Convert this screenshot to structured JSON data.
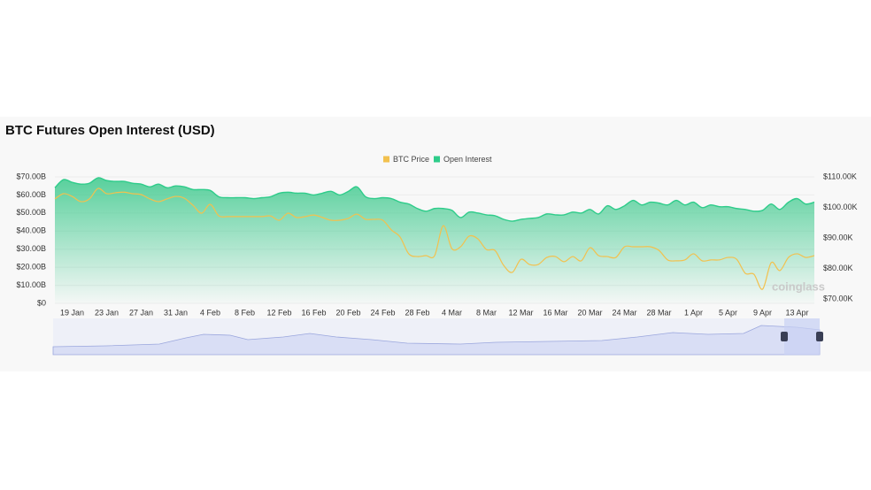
{
  "chart_data": {
    "type": "line",
    "title": "BTC Futures Open Interest (USD)",
    "watermark": "coinglass",
    "legend": "top",
    "categories": [
      null,
      null,
      "19 Jan",
      null,
      null,
      null,
      "23 Jan",
      null,
      null,
      null,
      "27 Jan",
      null,
      null,
      null,
      "31 Jan",
      null,
      null,
      null,
      "4 Feb",
      null,
      null,
      null,
      "8 Feb",
      null,
      null,
      null,
      "12 Feb",
      null,
      null,
      null,
      "16 Feb",
      null,
      null,
      null,
      "20 Feb",
      null,
      null,
      null,
      "24 Feb",
      null,
      null,
      null,
      "28 Feb",
      null,
      null,
      null,
      "4 Mar",
      null,
      null,
      null,
      "8 Mar",
      null,
      null,
      null,
      "12 Mar",
      null,
      null,
      null,
      "16 Mar",
      null,
      null,
      null,
      "20 Mar",
      null,
      null,
      null,
      "24 Mar",
      null,
      null,
      null,
      "28 Mar",
      null,
      null,
      null,
      "1 Apr",
      null,
      null,
      null,
      "5 Apr",
      null,
      null,
      null,
      "9 Apr",
      null,
      null,
      null,
      "13 Apr",
      null,
      null
    ],
    "series": [
      {
        "name": "BTC Price",
        "color": "#f2c14e",
        "axis": "y2",
        "values": [
          102.8,
          104.5,
          103.6,
          101.9,
          102.8,
          106.2,
          104.5,
          104.8,
          105,
          104.5,
          104.2,
          102.8,
          101.9,
          102.8,
          103.6,
          103,
          100.7,
          98.1,
          101,
          97.2,
          97,
          97,
          97,
          97,
          97,
          97.2,
          95.8,
          98.1,
          96.7,
          97,
          97.5,
          96.7,
          95.8,
          95.8,
          96.4,
          97.8,
          96.1,
          96.1,
          95.8,
          92.6,
          90.3,
          84.8,
          83.9,
          84.2,
          84.2,
          94,
          86.5,
          87.1,
          90.6,
          89.7,
          86.2,
          85.9,
          81,
          78.7,
          83,
          81.3,
          81.3,
          83.6,
          83.9,
          82.2,
          83.9,
          82.5,
          86.8,
          84.2,
          83.9,
          83.6,
          87.1,
          87.1,
          87.1,
          87.1,
          85.9,
          82.8,
          82.5,
          82.8,
          84.8,
          82.5,
          82.8,
          82.8,
          83.6,
          83,
          78.4,
          78.1,
          73.2,
          81.9,
          79.3,
          83.6,
          84.8,
          83.6,
          84.2
        ]
      },
      {
        "name": "Open Interest",
        "color": "#2ecc8a",
        "axis": "y",
        "values": [
          64,
          68.5,
          67,
          66,
          66.5,
          69.5,
          68,
          67.5,
          67.5,
          66.5,
          66,
          64.5,
          66,
          64,
          65,
          64.5,
          63,
          63,
          62.5,
          59,
          58.5,
          58.5,
          58.5,
          58,
          58.5,
          59,
          61,
          61.5,
          61,
          61,
          60,
          61,
          62,
          60,
          62,
          64.5,
          59,
          58,
          58.5,
          58,
          56,
          55,
          52.5,
          51,
          52.5,
          52.5,
          51.5,
          47.5,
          50.5,
          50,
          49,
          48.5,
          46.5,
          45.5,
          46.5,
          47,
          47.5,
          49.5,
          49,
          49,
          50.5,
          50,
          52,
          49.5,
          54,
          52,
          54,
          57,
          54.5,
          56,
          55.5,
          54.5,
          57,
          54.5,
          56,
          53,
          54.5,
          53.5,
          53.5,
          52.5,
          52,
          51,
          51.5,
          55,
          52,
          56,
          58,
          55,
          56
        ]
      }
    ],
    "ylim": [
      0,
      70
    ],
    "yticks": [
      {
        "value": 0,
        "label": "$0"
      },
      {
        "value": 10,
        "label": "$10.00B"
      },
      {
        "value": 20,
        "label": "$20.00B"
      },
      {
        "value": 30,
        "label": "$30.00B"
      },
      {
        "value": 40,
        "label": "$40.00B"
      },
      {
        "value": 50,
        "label": "$50.00B"
      },
      {
        "value": 60,
        "label": "$60.00B"
      },
      {
        "value": 70,
        "label": "$70.00B"
      }
    ],
    "y2lim": [
      70,
      110
    ],
    "y2ticks": [
      {
        "value": 70,
        "label": "$70.00K"
      },
      {
        "value": 80,
        "label": "$80.00K"
      },
      {
        "value": 90,
        "label": "$90.00K"
      },
      {
        "value": 100,
        "label": "$100.00K"
      },
      {
        "value": 110,
        "label": "$110.00K"
      }
    ],
    "grid": true
  }
}
